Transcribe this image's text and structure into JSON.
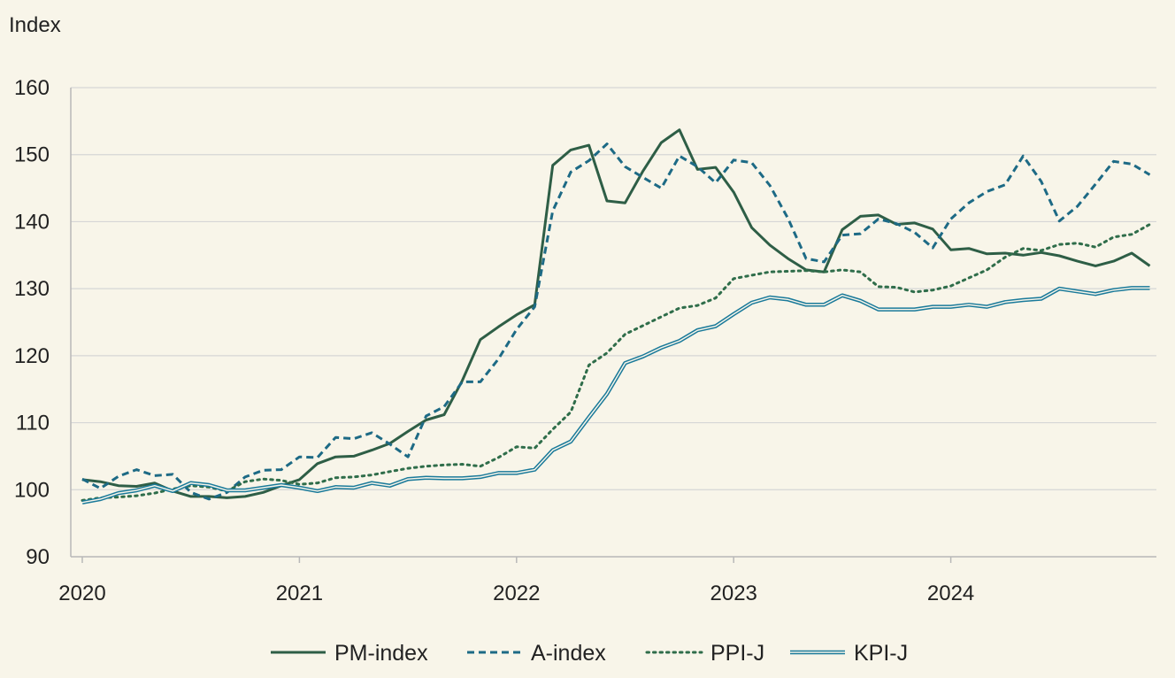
{
  "chart_data": {
    "type": "line",
    "title": "",
    "ylabel": "Index",
    "xlabel": "",
    "ylim": [
      90,
      160
    ],
    "yticks": [
      90,
      100,
      110,
      120,
      130,
      140,
      150,
      160
    ],
    "xtick_labels": [
      "2020",
      "2021",
      "2022",
      "2023",
      "2024"
    ],
    "x_start": "2020-01",
    "grid": "horizontal",
    "legend_position": "bottom",
    "series": [
      {
        "name": "PM-index",
        "color": "#2e5e46",
        "style": "solid",
        "values": [
          101.5,
          101.2,
          100.6,
          100.5,
          101.0,
          99.8,
          99.0,
          99.0,
          98.8,
          99.0,
          99.6,
          100.6,
          101.5,
          103.9,
          104.9,
          105.0,
          105.9,
          106.9,
          108.7,
          110.4,
          111.2,
          116.3,
          122.4,
          124.3,
          126.1,
          127.6,
          148.4,
          150.7,
          151.4,
          143.1,
          142.8,
          147.6,
          151.8,
          153.7,
          147.8,
          148.1,
          144.4,
          139.1,
          136.5,
          134.5,
          132.8,
          132.5,
          138.8,
          140.8,
          141.0,
          139.6,
          139.8,
          138.9,
          135.8,
          136.0,
          135.2,
          135.3,
          135.0,
          135.4,
          134.9,
          134.1,
          133.4,
          134.1,
          135.3,
          133.4
        ]
      },
      {
        "name": "A-index",
        "color": "#1d6a85",
        "style": "dashed",
        "values": [
          101.6,
          100.2,
          102.0,
          103.0,
          102.1,
          102.3,
          99.6,
          98.6,
          99.6,
          101.9,
          102.9,
          103.0,
          104.9,
          104.8,
          107.8,
          107.6,
          108.5,
          106.8,
          104.9,
          111.0,
          112.4,
          116.1,
          116.1,
          119.5,
          123.9,
          127.3,
          141.6,
          147.4,
          149.1,
          151.6,
          148.2,
          146.6,
          145.0,
          149.8,
          148.2,
          145.8,
          149.2,
          148.8,
          145.4,
          140.5,
          134.5,
          134.0,
          138.0,
          138.2,
          140.4,
          139.7,
          138.4,
          136.1,
          140.4,
          142.8,
          144.5,
          145.5,
          149.8,
          146.0,
          140.1,
          142.3,
          145.6,
          149.0,
          148.6,
          147.0
        ]
      },
      {
        "name": "PPI-J",
        "color": "#2f6d4a",
        "style": "dotted",
        "values": [
          98.4,
          98.8,
          98.9,
          99.1,
          99.5,
          100.1,
          100.6,
          100.4,
          99.8,
          101.2,
          101.6,
          101.4,
          100.8,
          101.0,
          101.8,
          101.9,
          102.2,
          102.7,
          103.2,
          103.5,
          103.7,
          103.8,
          103.5,
          104.8,
          106.4,
          106.2,
          109.0,
          111.6,
          118.6,
          120.4,
          123.2,
          124.5,
          125.8,
          127.1,
          127.5,
          128.6,
          131.5,
          132.0,
          132.5,
          132.6,
          132.7,
          132.5,
          132.8,
          132.5,
          130.3,
          130.2,
          129.5,
          129.8,
          130.4,
          131.6,
          132.8,
          134.7,
          136.0,
          135.7,
          136.6,
          136.8,
          136.2,
          137.7,
          138.1,
          139.6
        ]
      },
      {
        "name": "KPI-J",
        "color": "#1a7a9a",
        "style": "double",
        "values": [
          98.1,
          98.6,
          99.5,
          99.9,
          100.6,
          99.8,
          101.0,
          100.7,
          99.9,
          99.9,
          100.3,
          100.7,
          100.3,
          99.8,
          100.4,
          100.3,
          101.0,
          100.6,
          101.6,
          101.8,
          101.7,
          101.7,
          101.9,
          102.5,
          102.5,
          103.0,
          105.9,
          107.2,
          110.8,
          114.3,
          118.9,
          119.9,
          121.2,
          122.2,
          123.8,
          124.4,
          126.2,
          127.9,
          128.7,
          128.4,
          127.6,
          127.6,
          129.0,
          128.2,
          126.9,
          126.9,
          126.9,
          127.3,
          127.3,
          127.6,
          127.3,
          128.0,
          128.3,
          128.5,
          130.0,
          129.6,
          129.2,
          129.8,
          130.1,
          130.1
        ]
      }
    ]
  }
}
